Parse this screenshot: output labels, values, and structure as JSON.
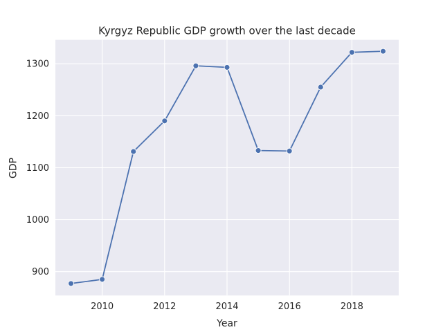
{
  "colors": {
    "plot_background": "#eaeaf2",
    "grid": "#ffffff",
    "series": "#4c72b0",
    "text": "#262626"
  },
  "chart_data": {
    "type": "line",
    "title": "Kyrgyz Republic GDP growth over the last decade",
    "xlabel": "Year",
    "ylabel": "GDP",
    "x": [
      2009,
      2010,
      2011,
      2012,
      2013,
      2014,
      2015,
      2016,
      2017,
      2018,
      2019
    ],
    "series": [
      {
        "values": [
          877,
          885,
          1131,
          1190,
          1296,
          1293,
          1133,
          1132,
          1255,
          1322,
          1324
        ]
      }
    ],
    "xlim": [
      2008.5,
      2019.5
    ],
    "ylim": [
      854,
      1346
    ],
    "xticks": [
      2010,
      2012,
      2014,
      2016,
      2018
    ],
    "yticks": [
      900,
      1000,
      1100,
      1200,
      1300
    ],
    "grid": true,
    "markers": true,
    "style": "seaborn-darkgrid"
  }
}
